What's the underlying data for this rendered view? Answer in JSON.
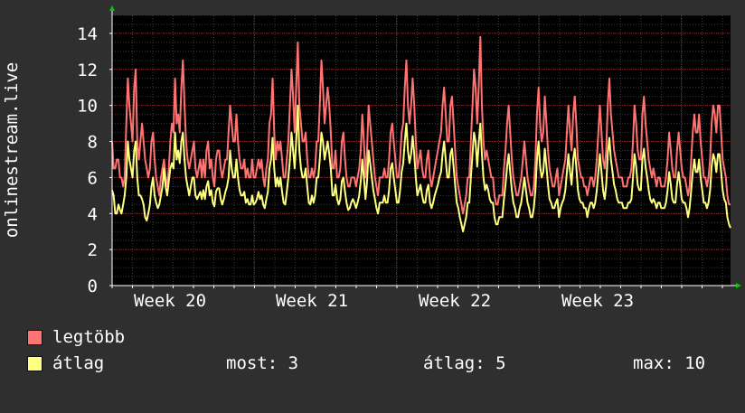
{
  "chart_data": {
    "type": "line",
    "ylabel": "onlinestream.live",
    "ylim": [
      0,
      15
    ],
    "y_ticks": [
      0,
      2,
      4,
      6,
      8,
      10,
      12,
      14
    ],
    "x_ticks": [
      "Week 20",
      "Week 21",
      "Week 22",
      "Week 23"
    ],
    "grid": true,
    "legend_position": "bottom-left",
    "x_axis": "weekly time axis, about 4.4 weeks, 2-hour samples",
    "series": [
      {
        "name": "legtöbb",
        "color": "#ff7373",
        "values": [
          8,
          6.5,
          6.5,
          7,
          7,
          6,
          6,
          5.5,
          6,
          9,
          11.5,
          10,
          9,
          8,
          11,
          12,
          8,
          7,
          8,
          9,
          8,
          7,
          6.5,
          6,
          6.5,
          8,
          8.5,
          7,
          6,
          5.5,
          5,
          6,
          6.5,
          7,
          6,
          5.5,
          6.5,
          8,
          9,
          8.5,
          11.5,
          9,
          9.5,
          8.5,
          11,
          12.5,
          10,
          8,
          7,
          6.5,
          7,
          7.5,
          8,
          6.5,
          6,
          6.5,
          7,
          6,
          7,
          6,
          7.5,
          8,
          6.5,
          7,
          6,
          5.5,
          7,
          7.5,
          7.5,
          6.5,
          6,
          6.5,
          7,
          7,
          8.5,
          10,
          9,
          8,
          8,
          9.5,
          8,
          7,
          6.5,
          6.5,
          7,
          6,
          6.5,
          6,
          6,
          7,
          6,
          6,
          6.5,
          7,
          6.5,
          7,
          6,
          5.5,
          6.5,
          7,
          9,
          9.5,
          11.5,
          8.5,
          7,
          8,
          7.5,
          8,
          7,
          6,
          6,
          7,
          8,
          10,
          12,
          10.5,
          8.5,
          11,
          13.5,
          10,
          9,
          8,
          8,
          8.5,
          7,
          6,
          6,
          6.5,
          6,
          6.5,
          8,
          8,
          10,
          12.5,
          11,
          9,
          10,
          11,
          10,
          8.5,
          6.5,
          6.5,
          7.5,
          6,
          6,
          6.5,
          8,
          8.5,
          7,
          6,
          5.5,
          5.5,
          6,
          6,
          6,
          5.5,
          6,
          6.5,
          7.5,
          9.5,
          8,
          6,
          7.5,
          10,
          9,
          8,
          7,
          6,
          5.5,
          5,
          6,
          6,
          6,
          6.5,
          6,
          6,
          7,
          8.5,
          9,
          8,
          7,
          6,
          6,
          7,
          8.5,
          9,
          11,
          12.5,
          10,
          9,
          10,
          11.5,
          10,
          8,
          6.5,
          7,
          7.5,
          6.5,
          6,
          6,
          7,
          7.5,
          6,
          5.5,
          6,
          6.5,
          7,
          7.5,
          8,
          8.5,
          10,
          11,
          9.5,
          8,
          8,
          10,
          10.5,
          9,
          7.5,
          6,
          5.5,
          5,
          4.5,
          4,
          4.5,
          5,
          6,
          6,
          8,
          10,
          12,
          11,
          9,
          11,
          13.8,
          10,
          8,
          7,
          7.5,
          7,
          6.5,
          6,
          6,
          5,
          4.5,
          4.5,
          5,
          5,
          5,
          6.5,
          7.5,
          9,
          10,
          8.5,
          7,
          6,
          5.5,
          5,
          5,
          5.5,
          6,
          7,
          8,
          7,
          6,
          5.5,
          5,
          5,
          5.5,
          7,
          9.5,
          11,
          9,
          8,
          8.5,
          10.5,
          9,
          7.5,
          6.5,
          6,
          5.5,
          5.5,
          6,
          6.5,
          5,
          5.5,
          6,
          6.5,
          7,
          8.5,
          10,
          8.5,
          7.5,
          9.5,
          10.5,
          9,
          7,
          6.5,
          6,
          6,
          5.5,
          5.5,
          5,
          5.5,
          6,
          6,
          5.5,
          6,
          7,
          8.5,
          10,
          8.5,
          7,
          6.5,
          7.5,
          10,
          11.5,
          9.5,
          8.5,
          7.5,
          7,
          6.5,
          6,
          6,
          6,
          5.5,
          5.5,
          5.5,
          6,
          6,
          6.5,
          8,
          10,
          9,
          7.5,
          7,
          7,
          9.5,
          10.5,
          9,
          8,
          7,
          6.5,
          6,
          6.5,
          6,
          5.5,
          6,
          6,
          5.5,
          5.5,
          5.5,
          6,
          7,
          8.5,
          7.5,
          6.5,
          6,
          6,
          7.5,
          8.5,
          7.5,
          6.5,
          6,
          6,
          5.5,
          5,
          5.5,
          7,
          8.5,
          9.5,
          8.5,
          8.5,
          9.5,
          8,
          7,
          6,
          6,
          5.5,
          6,
          7,
          9,
          10,
          9.5,
          8.5,
          10,
          10,
          8.5,
          7,
          6.5,
          6,
          5,
          4.5,
          4.5
        ],
        "label": "legtöbb"
      },
      {
        "name": "átlag",
        "color": "#ffff80",
        "values": [
          5.3,
          5,
          4,
          4,
          4.5,
          4.2,
          4,
          4.5,
          5,
          6,
          8,
          7,
          6.5,
          6,
          7.5,
          8,
          6,
          5,
          5,
          4.8,
          4.5,
          3.8,
          3.6,
          4,
          4.5,
          5.5,
          6,
          5,
          4.6,
          4.3,
          4.5,
          5,
          5.5,
          6.5,
          5.5,
          5,
          5.8,
          6.5,
          6.8,
          6.5,
          8.5,
          7,
          7.5,
          6.8,
          8,
          8.5,
          7,
          6,
          5.5,
          5,
          5.5,
          6,
          6,
          5,
          4.8,
          5,
          5.2,
          4.8,
          5.3,
          4.8,
          5.5,
          5.8,
          5,
          5.3,
          4.6,
          4.4,
          5.2,
          5.4,
          5.4,
          4.8,
          4.5,
          4.8,
          5.2,
          5.5,
          6,
          7.5,
          6.5,
          6,
          6,
          7,
          6,
          5.3,
          5,
          5,
          5.2,
          4.6,
          4.8,
          4.5,
          4.5,
          5,
          4.5,
          4.6,
          4.8,
          5.2,
          4.8,
          5,
          4.5,
          4.3,
          4.8,
          5.2,
          6.5,
          7,
          8.2,
          6.5,
          5.5,
          6,
          5.5,
          6,
          5.2,
          4.6,
          4.5,
          5.2,
          6,
          7,
          8.5,
          7.5,
          6.5,
          8,
          10,
          7.5,
          6.5,
          6,
          6,
          6.5,
          5.5,
          4.6,
          4.5,
          5,
          4.6,
          5,
          6,
          6,
          7,
          8.5,
          8,
          7,
          7.5,
          8,
          7.3,
          6.5,
          5,
          5,
          5.6,
          4.8,
          4.5,
          4.8,
          5.8,
          6,
          5.2,
          4.6,
          4.2,
          4.3,
          4.6,
          4.8,
          4.6,
          4.3,
          4.6,
          5,
          5.8,
          7,
          6,
          4.8,
          5.8,
          7.5,
          6.8,
          6,
          5.3,
          4.8,
          4.3,
          4,
          4.6,
          4.6,
          4.6,
          5,
          4.6,
          4.6,
          5.3,
          6.5,
          6.8,
          6,
          5.3,
          4.6,
          4.6,
          5.3,
          6.3,
          6.8,
          8,
          9,
          7.5,
          6.8,
          7.3,
          8.3,
          7.3,
          6,
          5,
          5.3,
          5.6,
          5,
          4.6,
          4.6,
          5.3,
          5.6,
          4.6,
          4.3,
          4.6,
          5,
          5.3,
          5.6,
          6,
          6.3,
          7.3,
          8,
          7,
          6,
          6,
          7.3,
          7.6,
          6.6,
          5.6,
          4.6,
          4.3,
          3.8,
          3.4,
          3,
          3.4,
          3.8,
          4.6,
          4.6,
          6,
          7.3,
          8.5,
          8,
          6.6,
          7.9,
          9,
          7.3,
          6,
          5.3,
          5.6,
          5.3,
          4.8,
          4.6,
          4.6,
          3.8,
          3.4,
          3.4,
          3.8,
          3.8,
          3.8,
          4.8,
          5.6,
          6.6,
          7.3,
          6.3,
          5.3,
          4.6,
          4.3,
          3.8,
          3.8,
          4.3,
          4.6,
          5.3,
          6,
          5.3,
          4.6,
          4.3,
          3.8,
          3.8,
          4.3,
          5.3,
          7,
          8,
          6.6,
          6,
          6.3,
          7.6,
          6.6,
          5.6,
          4.8,
          4.6,
          4.3,
          4.3,
          4.6,
          4.8,
          3.8,
          4.3,
          4.6,
          4.8,
          5.3,
          6.3,
          7.3,
          6.3,
          5.6,
          7,
          7.6,
          6.6,
          5.3,
          4.8,
          4.6,
          4.6,
          4.3,
          4.3,
          3.8,
          4.3,
          4.6,
          4.6,
          4.3,
          4.6,
          5.3,
          6.3,
          7.3,
          6.3,
          5.3,
          4.8,
          5.6,
          7.3,
          8.2,
          7,
          6.3,
          5.6,
          5.3,
          4.8,
          4.6,
          4.6,
          4.6,
          4.3,
          4.3,
          4.3,
          4.6,
          4.6,
          4.8,
          6,
          7.3,
          6.6,
          5.6,
          5.3,
          5.3,
          7,
          7.6,
          6.6,
          6,
          5.3,
          4.8,
          4.6,
          4.8,
          4.6,
          4.3,
          4.6,
          4.6,
          4.3,
          4.3,
          4.3,
          4.6,
          5.3,
          6.3,
          5.6,
          4.8,
          4.6,
          4.6,
          5.6,
          6.3,
          5.6,
          4.8,
          4.6,
          4.6,
          4.3,
          3.8,
          4.3,
          5.3,
          6.3,
          7,
          6.3,
          6.3,
          7,
          6,
          5.3,
          4.6,
          4.6,
          4.3,
          4.6,
          5.3,
          6.6,
          7.3,
          7,
          6.3,
          7.3,
          7.3,
          6.3,
          5.3,
          4.8,
          4.6,
          3.8,
          3.4,
          3.2
        ]
      }
    ]
  },
  "legend": [
    {
      "label": "legtöbb",
      "color": "#ff7373"
    },
    {
      "label": "átlag",
      "color": "#ffff80"
    }
  ],
  "stats": {
    "most": "most: 3",
    "atlag": "átlag: 5",
    "max": "max: 10"
  }
}
